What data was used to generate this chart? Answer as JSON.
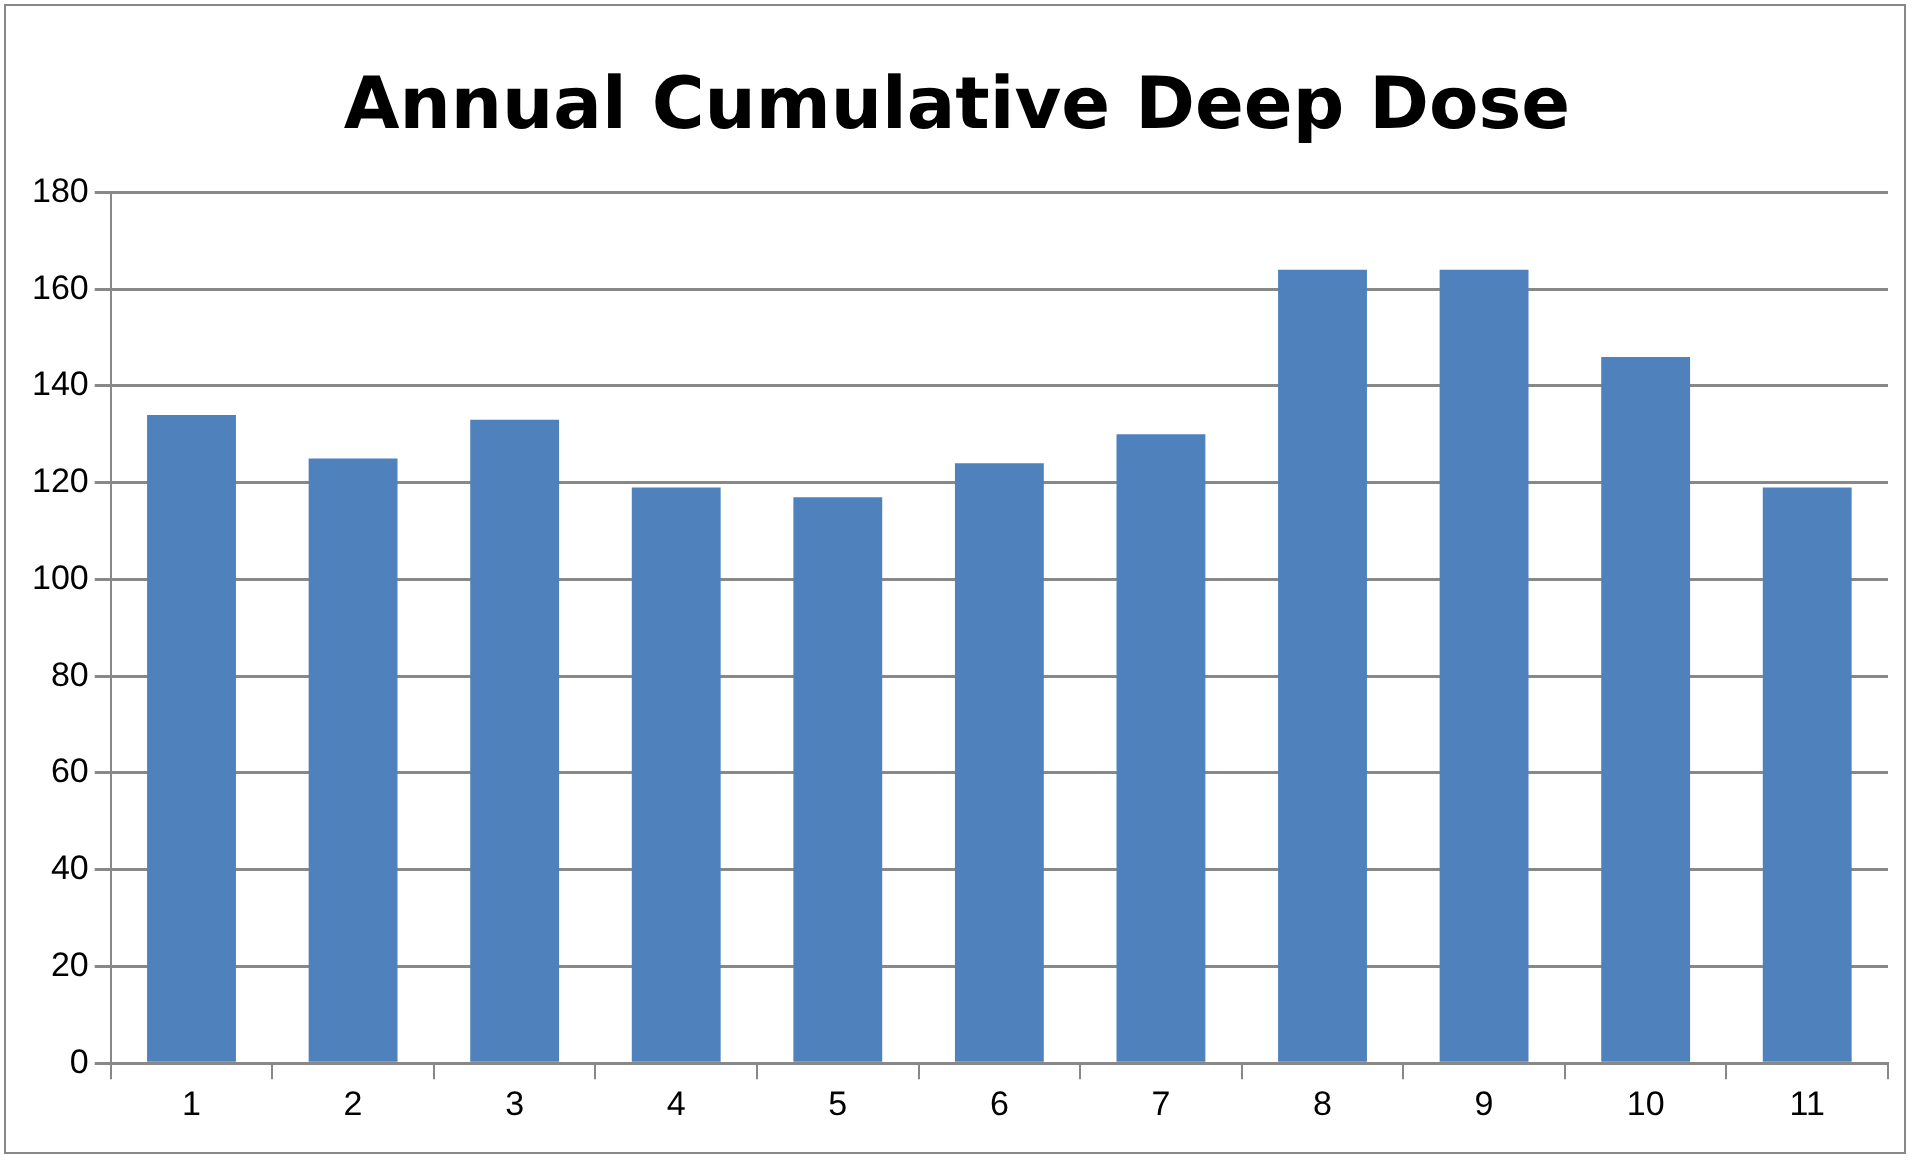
{
  "chart_data": {
    "type": "bar",
    "title": "Annual Cumulative Deep Dose",
    "categories": [
      "1",
      "2",
      "3",
      "4",
      "5",
      "6",
      "7",
      "8",
      "9",
      "10",
      "11"
    ],
    "values": [
      134,
      125,
      133,
      119,
      117,
      124,
      130,
      164,
      164,
      146,
      119
    ],
    "color": "#4f81bd",
    "ylim": [
      0,
      180
    ],
    "yticks": [
      0,
      20,
      40,
      60,
      80,
      100,
      120,
      140,
      160,
      180
    ],
    "grid": "y"
  }
}
